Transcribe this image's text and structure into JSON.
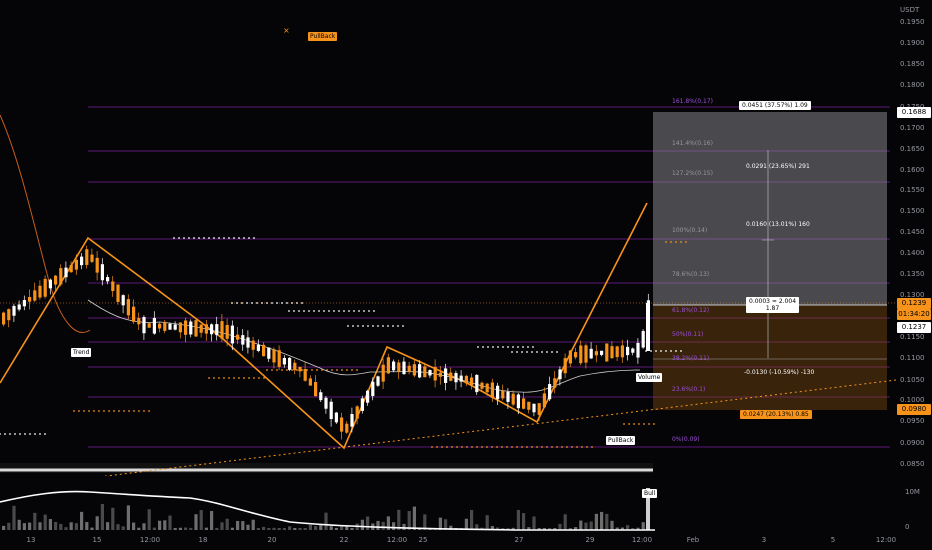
{
  "price_scale": {
    "currency": "USDT",
    "ticks": [
      "0.1950",
      "0.1900",
      "0.1850",
      "0.1800",
      "0.1750",
      "0.1700",
      "0.1650",
      "0.1600",
      "0.1550",
      "0.1500",
      "0.1450",
      "0.1400",
      "0.1350",
      "0.1300",
      "0.1250",
      "0.1150",
      "0.1100",
      "0.1050",
      "0.1000",
      "0.0950",
      "0.0900",
      "0.0850"
    ],
    "current_price": "0.1239",
    "countdown": "01:34:20",
    "marker_white": "0.1237",
    "marker_orange": "0.0980",
    "marker_stop": "0.1688",
    "volume_label": "10M",
    "volume_zero": "0"
  },
  "time_scale": {
    "labels": [
      "13",
      "15",
      "12:00",
      "18",
      "20",
      "22",
      "12:00",
      "25",
      "27",
      "29",
      "12:00",
      "Feb",
      "3",
      "5",
      "12:00"
    ]
  },
  "fib_levels": [
    {
      "label": "161.8%(0.17)"
    },
    {
      "label": "141.4%(0.16)"
    },
    {
      "label": "127.2%(0.15)"
    },
    {
      "label": "100%(0.14)"
    },
    {
      "label": "78.6%(0.13)"
    },
    {
      "label": "61.8%(0.12)"
    },
    {
      "label": "50%(0.11)"
    },
    {
      "label": "38.2%(0.11)"
    },
    {
      "label": "23.6%(0.1)"
    },
    {
      "label": "0%(0.09)"
    }
  ],
  "annotations": {
    "pullback_top": "PullBack",
    "pullback_bottom": "PullBack",
    "trend": "Trend",
    "volume_tag": "Volume",
    "bull_tag": "Bull",
    "x_mark": "×"
  },
  "position_box": {
    "target_label": "0.0451 (37.57%) 1.09",
    "mid1_label": "0.0291 (23.65%) 291",
    "mid2_label": "0.0160 (13.01%) 160",
    "entry_label_line1": "0.0003 ≈ 2.004",
    "entry_label_line2": "1.87",
    "stop_label": "-0.0130 (-10.59%) -130",
    "loss_label": "0.0247 (20.13%) 0.85"
  },
  "colors": {
    "background": "#050507",
    "fib_line": "#9c27b0",
    "up_candle": "#ffffff",
    "down_candle": "#f7931a",
    "zigzag": "#f7931a",
    "ma_line": "#d9d9d9",
    "profit_zone": "#8b8b8b",
    "loss_zone": "#5a3a10"
  },
  "icons": {
    "x_marker": "x-mark-icon"
  }
}
